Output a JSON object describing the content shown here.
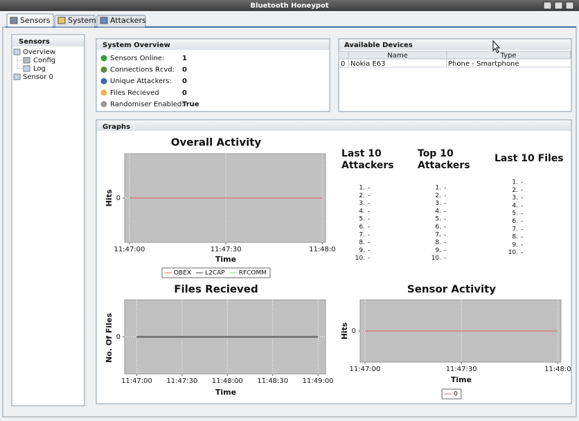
{
  "window": {
    "title": "Bluetooth Honeypot"
  },
  "tabs": [
    "Sensors",
    "System",
    "Attackers"
  ],
  "sidebar": {
    "title": "Sensors",
    "tree": [
      "Overview",
      "Config",
      "Log",
      "Sensor 0"
    ]
  },
  "system_overview": {
    "title": "System Overview",
    "rows": [
      {
        "label": "Sensors Online:",
        "value": 1
      },
      {
        "label": "Connections Rcvd:",
        "value": 0
      },
      {
        "label": "Unique Attackers:",
        "value": 0
      },
      {
        "label": "Files Recieved",
        "value": 0
      },
      {
        "label": "Randomiser Enabled:",
        "value": "True"
      }
    ]
  },
  "available_devices": {
    "title": "Available Devices",
    "columns": [
      "Name",
      "Type"
    ],
    "rows": [
      [
        0,
        "Nokia E63",
        "Phone - Smartphone"
      ]
    ]
  },
  "graphs": {
    "title": "Graphs",
    "lists": [
      {
        "title": "Last 10 Attackers",
        "items": [
          [
            "1.",
            "-"
          ],
          [
            "2.",
            "-"
          ],
          [
            "3.",
            "-"
          ],
          [
            "4.",
            "-"
          ],
          [
            "5.",
            "-"
          ],
          [
            "6.",
            "-"
          ],
          [
            "7.",
            "-"
          ],
          [
            "8.",
            "-"
          ],
          [
            "9.",
            "-"
          ],
          [
            "10.",
            "-"
          ]
        ]
      },
      {
        "title": "Top 10 Attackers",
        "items": [
          [
            "1.",
            "-"
          ],
          [
            "2.",
            "-"
          ],
          [
            "3.",
            "-"
          ],
          [
            "4.",
            "-"
          ],
          [
            "5.",
            "-"
          ],
          [
            "6.",
            "-"
          ],
          [
            "7.",
            "-"
          ],
          [
            "8.",
            "-"
          ],
          [
            "9.",
            "-"
          ],
          [
            "10.",
            "-"
          ]
        ]
      },
      {
        "title": "Last 10 Files",
        "items": [
          [
            "1.",
            "-"
          ],
          [
            "2.",
            "-"
          ],
          [
            "3.",
            "-"
          ],
          [
            "4.",
            "-"
          ],
          [
            "5.",
            "-"
          ],
          [
            "6.",
            "-"
          ],
          [
            "7.",
            "-"
          ],
          [
            "8.",
            "-"
          ],
          [
            "9.",
            "-"
          ],
          [
            "10.",
            "-"
          ]
        ]
      }
    ]
  },
  "chart_data": [
    {
      "type": "line",
      "title": "Overall Activity",
      "x_label": "Time",
      "y_label": "Hits",
      "xlim": [
        -1.5,
        61
      ],
      "xticks": [
        {
          "value": 0,
          "label": "11:47:00"
        },
        {
          "value": 30,
          "label": "11:47:30"
        },
        {
          "value": 60,
          "label": "11:48:0"
        }
      ],
      "ylim": [
        -1,
        1
      ],
      "yticks": [
        0
      ],
      "grid": true,
      "legend": "bottom",
      "series": [
        {
          "name": "OBEX",
          "color": "#e05858",
          "x": [
            0,
            60
          ],
          "values": [
            0,
            0
          ]
        },
        {
          "name": "L2CAP",
          "color": "#404040",
          "x": [
            0,
            60
          ],
          "values": [
            0,
            0
          ]
        },
        {
          "name": "RFCOMM",
          "color": "#8fcf8f",
          "x": [
            0,
            60
          ],
          "values": [
            0,
            0
          ]
        }
      ]
    },
    {
      "type": "line",
      "title": "Files Recieved",
      "x_label": "Time",
      "y_label": "No. Of Files",
      "xlim": [
        -8,
        125
      ],
      "xticks": [
        {
          "value": 0,
          "label": "11:47:00"
        },
        {
          "value": 30,
          "label": "11:47:30"
        },
        {
          "value": 60,
          "label": "11:48:00"
        },
        {
          "value": 90,
          "label": "11:48:30"
        },
        {
          "value": 120,
          "label": "11:49:00"
        }
      ],
      "ylim": [
        -1,
        1
      ],
      "yticks": [
        0
      ],
      "grid": true,
      "series": [
        {
          "color": "#777777",
          "x": [
            0,
            120
          ],
          "values": [
            0,
            0
          ]
        }
      ]
    },
    {
      "type": "line",
      "title": "Sensor Activity",
      "x_label": "Time",
      "y_label": "Hits",
      "xlim": [
        -1.5,
        61
      ],
      "xticks": [
        {
          "value": 0,
          "label": "11:47:00"
        },
        {
          "value": 30,
          "label": "11:47:30"
        },
        {
          "value": 60,
          "label": "11:48:0"
        }
      ],
      "ylim": [
        -1,
        1
      ],
      "yticks": [
        0
      ],
      "grid": true,
      "legend": "bottom",
      "series": [
        {
          "name": "0",
          "color": "#e05858",
          "x": [
            0,
            60
          ],
          "values": [
            0,
            0
          ]
        }
      ]
    }
  ]
}
